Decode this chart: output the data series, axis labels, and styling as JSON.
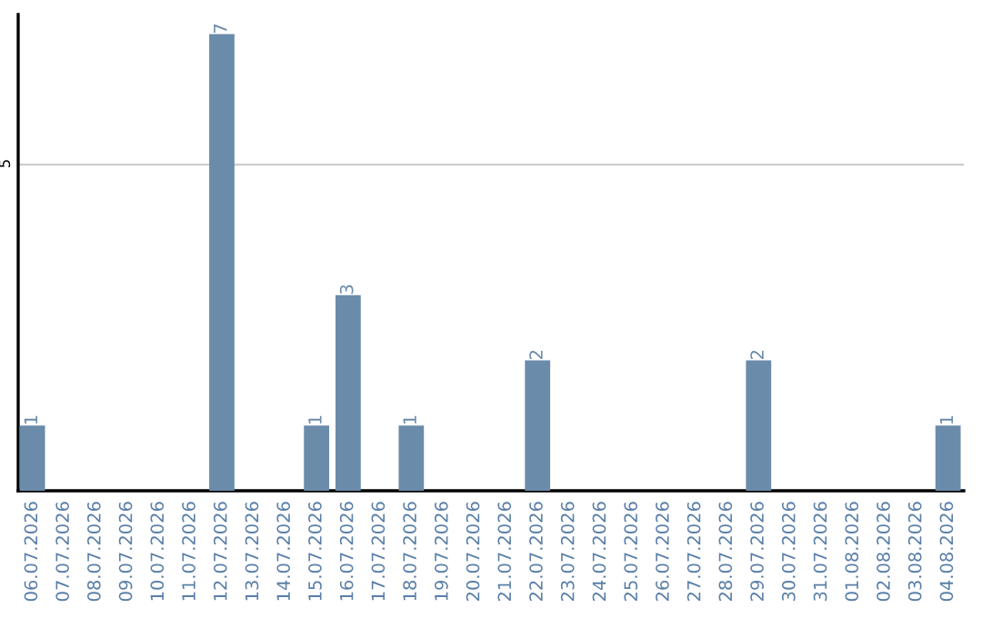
{
  "chart_data": {
    "type": "bar",
    "categories": [
      "06.07.2026",
      "07.07.2026",
      "08.07.2026",
      "09.07.2026",
      "10.07.2026",
      "11.07.2026",
      "12.07.2026",
      "13.07.2026",
      "14.07.2026",
      "15.07.2026",
      "16.07.2026",
      "17.07.2026",
      "18.07.2026",
      "19.07.2026",
      "20.07.2026",
      "21.07.2026",
      "22.07.2026",
      "23.07.2026",
      "24.07.2026",
      "25.07.2026",
      "26.07.2026",
      "27.07.2026",
      "28.07.2026",
      "29.07.2026",
      "30.07.2026",
      "31.07.2026",
      "01.08.2026",
      "02.08.2026",
      "03.08.2026",
      "04.08.2026"
    ],
    "values": [
      1,
      0,
      0,
      0,
      0,
      0,
      7,
      0,
      0,
      1,
      3,
      0,
      1,
      0,
      0,
      0,
      2,
      0,
      0,
      0,
      0,
      0,
      0,
      2,
      0,
      0,
      0,
      0,
      0,
      1
    ],
    "value_labels": [
      "1",
      null,
      null,
      null,
      null,
      null,
      "7",
      null,
      null,
      "1",
      "3",
      null,
      "1",
      null,
      null,
      null,
      "2",
      null,
      null,
      null,
      null,
      null,
      null,
      "2",
      null,
      null,
      null,
      null,
      null,
      "1"
    ],
    "color": "#6b8bab",
    "ylim": [
      0,
      7.3
    ],
    "yticks": [
      5
    ],
    "grid": "y"
  }
}
